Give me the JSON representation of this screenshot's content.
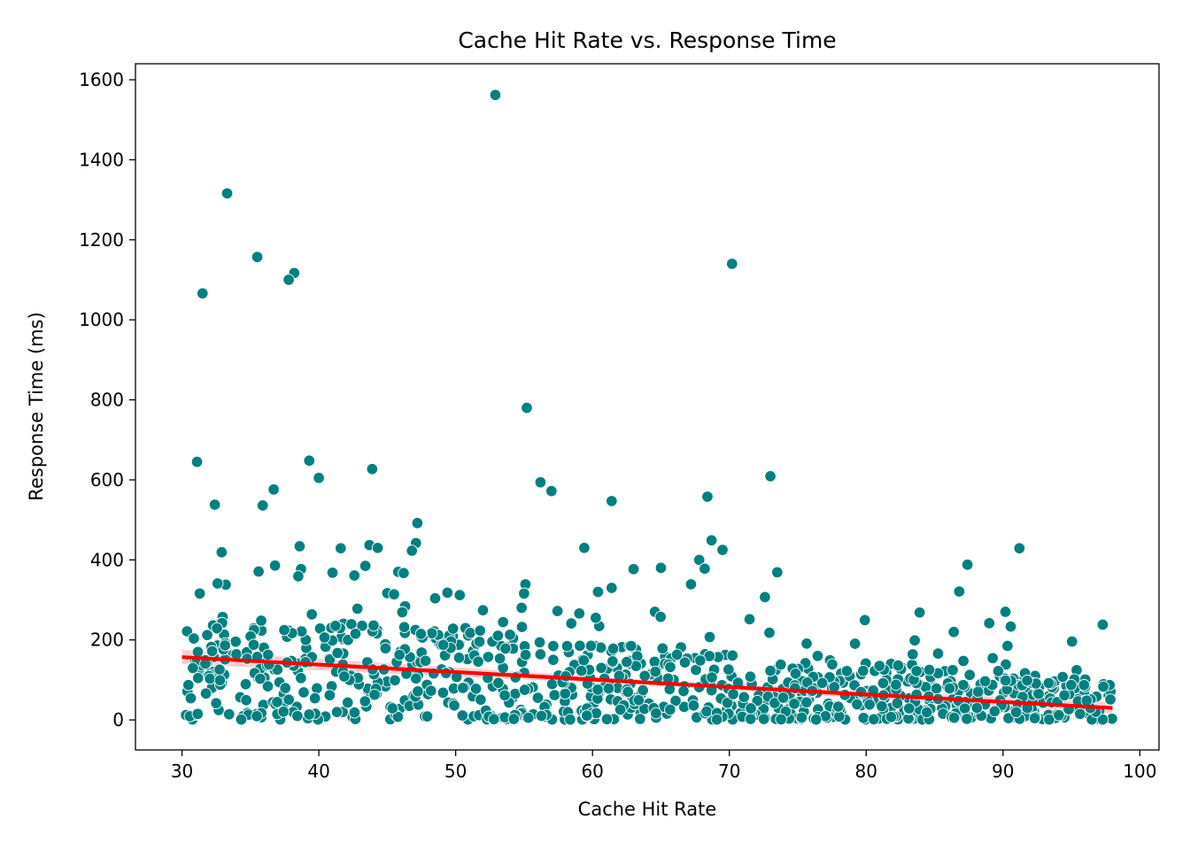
{
  "chart_data": {
    "type": "scatter",
    "title": "Cache Hit Rate vs. Response Time",
    "xlabel": "Cache Hit Rate",
    "ylabel": "Response Time (ms)",
    "xlim": [
      26.6,
      101.4
    ],
    "ylim": [
      -75,
      1640
    ],
    "xticks": [
      30,
      40,
      50,
      60,
      70,
      80,
      90,
      100
    ],
    "yticks": [
      0,
      200,
      400,
      600,
      800,
      1000,
      1200,
      1400,
      1600
    ],
    "grid": false,
    "legend": "none",
    "colors": {
      "points": "#008080",
      "point_edge": "#ffffff",
      "trend": "#ff0000",
      "trend_ci": "#f4a6a6"
    },
    "trend_line": {
      "x": [
        30,
        98
      ],
      "y": [
        157,
        30
      ]
    },
    "outliers": [
      [
        52.9,
        1562
      ],
      [
        33.3,
        1316
      ],
      [
        35.5,
        1157
      ],
      [
        38.2,
        1117
      ],
      [
        37.8,
        1100
      ],
      [
        70.2,
        1140
      ],
      [
        31.5,
        1066
      ],
      [
        55.2,
        780
      ],
      [
        31.1,
        645
      ],
      [
        39.3,
        648
      ],
      [
        43.9,
        627
      ],
      [
        40.0,
        605
      ],
      [
        73.0,
        609
      ],
      [
        56.2,
        594
      ],
      [
        57.0,
        572
      ],
      [
        36.7,
        576
      ],
      [
        35.9,
        536
      ],
      [
        32.4,
        538
      ],
      [
        61.4,
        547
      ],
      [
        68.4,
        558
      ],
      [
        47.2,
        492
      ],
      [
        68.7,
        449
      ],
      [
        47.1,
        442
      ],
      [
        91.2,
        429
      ],
      [
        59.4,
        430
      ],
      [
        43.7,
        437
      ],
      [
        44.3,
        430
      ],
      [
        41.6,
        429
      ],
      [
        38.6,
        434
      ],
      [
        46.8,
        423
      ],
      [
        69.5,
        425
      ],
      [
        32.9,
        419
      ],
      [
        67.8,
        400
      ],
      [
        68.2,
        378
      ],
      [
        73.5,
        369
      ],
      [
        65.0,
        380
      ],
      [
        63.0,
        377
      ],
      [
        87.4,
        388
      ],
      [
        36.8,
        386
      ],
      [
        43.4,
        385
      ],
      [
        35.6,
        371
      ],
      [
        38.7,
        377
      ],
      [
        38.5,
        359
      ],
      [
        41.0,
        368
      ],
      [
        42.6,
        361
      ],
      [
        45.8,
        370
      ],
      [
        46.2,
        367
      ],
      [
        67.2,
        339
      ],
      [
        61.4,
        330
      ],
      [
        55.1,
        339
      ],
      [
        55.0,
        316
      ],
      [
        60.4,
        320
      ],
      [
        72.6,
        307
      ],
      [
        86.8,
        321
      ],
      [
        45.0,
        317
      ],
      [
        45.5,
        314
      ],
      [
        31.3,
        316
      ],
      [
        33.2,
        338
      ],
      [
        32.6,
        341
      ],
      [
        49.4,
        318
      ],
      [
        50.3,
        312
      ],
      [
        48.5,
        304
      ]
    ],
    "dense_cloud": {
      "x_range": [
        30,
        98
      ],
      "count": 900,
      "y_median_at_x30": 105,
      "y_median_at_x98": 40,
      "y_max_at_x30": 300,
      "y_max_at_x98": 270,
      "y_min": 0
    }
  }
}
